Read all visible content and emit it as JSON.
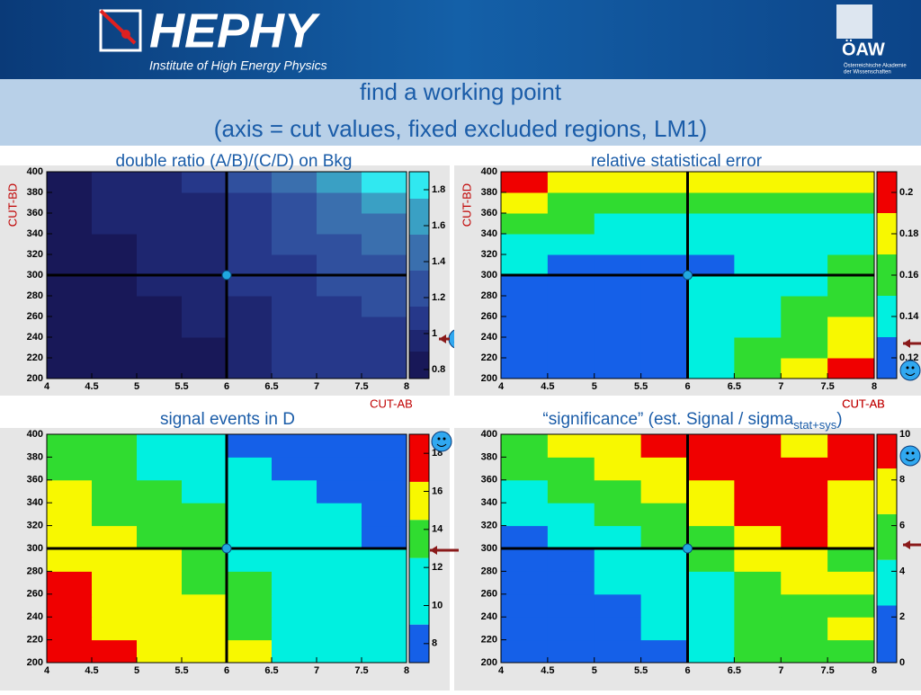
{
  "header": {
    "logo": "HEPHY",
    "institute": "Institute of High Energy Physics",
    "academy": "ÖAW",
    "academy_line1": "Österreichische Akademie",
    "academy_line2": "der Wissenschaften"
  },
  "slide_title": [
    "find a working point",
    "(axis = cut values, fixed excluded regions, LM1)"
  ],
  "chart_data": [
    {
      "type": "heatmap",
      "title": "double ratio (A/B)/(C/D) on Bkg",
      "xlabel": "CUT-AB",
      "ylabel": "CUT-BD",
      "xbins": [
        4,
        4.5,
        5,
        5.5,
        6,
        6.5,
        7,
        7.5,
        8
      ],
      "ybins": [
        200,
        220,
        240,
        260,
        280,
        300,
        320,
        340,
        360,
        380,
        400
      ],
      "xlim": [
        4,
        8
      ],
      "ylim": [
        200,
        400
      ],
      "xticks": [
        4,
        4.5,
        5,
        5.5,
        6,
        6.5,
        7,
        7.5,
        8
      ],
      "yticks": [
        200,
        220,
        240,
        260,
        280,
        300,
        320,
        340,
        360,
        380,
        400
      ],
      "zlim": [
        0.75,
        1.9
      ],
      "zticks": [
        0.8,
        1,
        1.2,
        1.4,
        1.6,
        1.8
      ],
      "levels": [
        0.75,
        0.9,
        1.02,
        1.15,
        1.35,
        1.55,
        1.75,
        1.9
      ],
      "colors": [
        "#181858",
        "#1e2670",
        "#26388a",
        "#30509e",
        "#3a6fae",
        "#3aa0c4",
        "#30e8f0"
      ],
      "cut_point": [
        6,
        300
      ],
      "values": [
        [
          0.85,
          0.85,
          0.85,
          0.85,
          1.0,
          1.05,
          1.1,
          1.1
        ],
        [
          0.85,
          0.85,
          0.85,
          0.85,
          1.0,
          1.05,
          1.1,
          1.1
        ],
        [
          0.85,
          0.85,
          0.85,
          0.95,
          1.0,
          1.05,
          1.1,
          1.1
        ],
        [
          0.85,
          0.85,
          0.85,
          0.95,
          1.0,
          1.05,
          1.1,
          1.2
        ],
        [
          0.85,
          0.85,
          0.9,
          1.0,
          1.05,
          1.1,
          1.2,
          1.2
        ],
        [
          0.85,
          0.85,
          0.9,
          1.0,
          1.05,
          1.1,
          1.2,
          1.3
        ],
        [
          0.85,
          0.85,
          0.9,
          1.0,
          1.05,
          1.2,
          1.3,
          1.4
        ],
        [
          0.85,
          0.9,
          0.95,
          1.0,
          1.05,
          1.2,
          1.4,
          1.5
        ],
        [
          0.85,
          0.9,
          0.95,
          1.0,
          1.1,
          1.3,
          1.5,
          1.6
        ],
        [
          0.85,
          0.9,
          0.95,
          1.05,
          1.2,
          1.5,
          1.6,
          1.8
        ]
      ]
    },
    {
      "type": "heatmap",
      "title": "relative statistical error",
      "xlabel": "CUT-AB",
      "ylabel": "CUT-BD",
      "xbins": [
        4,
        4.5,
        5,
        5.5,
        6,
        6.5,
        7,
        7.5,
        8
      ],
      "ybins": [
        200,
        220,
        240,
        260,
        280,
        300,
        320,
        340,
        360,
        380,
        400
      ],
      "xlim": [
        4,
        8
      ],
      "ylim": [
        200,
        400
      ],
      "xticks": [
        4,
        4.5,
        5,
        5.5,
        6,
        6.5,
        7,
        7.5,
        8
      ],
      "yticks": [
        200,
        220,
        240,
        260,
        280,
        300,
        320,
        340,
        360,
        380,
        400
      ],
      "zlim": [
        0.11,
        0.21
      ],
      "zticks": [
        0.12,
        0.14,
        0.16,
        0.18,
        0.2
      ],
      "levels": [
        0.11,
        0.13,
        0.15,
        0.17,
        0.19,
        0.21
      ],
      "colors": [
        "#1560e8",
        "#00f0e0",
        "#30dc30",
        "#f8f800",
        "#f00000"
      ],
      "cut_point": [
        6,
        300
      ],
      "values": [
        [
          0.12,
          0.12,
          0.12,
          0.12,
          0.14,
          0.16,
          0.18,
          0.2
        ],
        [
          0.12,
          0.12,
          0.12,
          0.12,
          0.14,
          0.16,
          0.16,
          0.18
        ],
        [
          0.12,
          0.12,
          0.12,
          0.12,
          0.14,
          0.14,
          0.16,
          0.18
        ],
        [
          0.12,
          0.12,
          0.12,
          0.12,
          0.14,
          0.14,
          0.16,
          0.16
        ],
        [
          0.12,
          0.12,
          0.12,
          0.12,
          0.14,
          0.14,
          0.14,
          0.16
        ],
        [
          0.14,
          0.12,
          0.12,
          0.12,
          0.12,
          0.14,
          0.14,
          0.16
        ],
        [
          0.14,
          0.14,
          0.14,
          0.14,
          0.14,
          0.14,
          0.14,
          0.14
        ],
        [
          0.16,
          0.16,
          0.14,
          0.14,
          0.14,
          0.14,
          0.14,
          0.14
        ],
        [
          0.18,
          0.16,
          0.16,
          0.16,
          0.16,
          0.16,
          0.16,
          0.16
        ],
        [
          0.2,
          0.18,
          0.18,
          0.18,
          0.18,
          0.18,
          0.18,
          0.18
        ]
      ]
    },
    {
      "type": "heatmap",
      "title": "signal events in D",
      "xbins": [
        4,
        4.5,
        5,
        5.5,
        6,
        6.5,
        7,
        7.5,
        8
      ],
      "ybins": [
        200,
        220,
        240,
        260,
        280,
        300,
        320,
        340,
        360,
        380,
        400
      ],
      "xlim": [
        4,
        8
      ],
      "ylim": [
        200,
        400
      ],
      "xticks": [
        4,
        4.5,
        5,
        5.5,
        6,
        6.5,
        7,
        7.5,
        8
      ],
      "yticks": [
        200,
        220,
        240,
        260,
        280,
        300,
        320,
        340,
        360,
        380,
        400
      ],
      "zlim": [
        7,
        19
      ],
      "zticks": [
        8,
        10,
        12,
        14,
        16,
        18
      ],
      "levels": [
        7,
        9,
        12.5,
        14.5,
        16.5,
        19
      ],
      "colors": [
        "#1560e8",
        "#00f0e0",
        "#30dc30",
        "#f8f800",
        "#f00000"
      ],
      "cut_point": [
        6,
        300
      ],
      "values": [
        [
          18,
          18,
          16,
          16,
          15,
          11,
          11,
          11
        ],
        [
          18,
          16,
          16,
          16,
          14,
          11,
          11,
          11
        ],
        [
          18,
          16,
          16,
          16,
          14,
          11,
          11,
          11
        ],
        [
          18,
          16,
          16,
          14,
          14,
          11,
          11,
          11
        ],
        [
          16,
          16,
          16,
          14,
          11,
          11,
          11,
          11
        ],
        [
          16,
          16,
          14,
          14,
          11,
          11,
          11,
          8
        ],
        [
          16,
          14,
          14,
          14,
          11,
          11,
          11,
          8
        ],
        [
          16,
          14,
          14,
          11,
          11,
          11,
          8,
          8
        ],
        [
          14,
          14,
          11,
          11,
          11,
          8,
          8,
          8
        ],
        [
          14,
          14,
          11,
          11,
          8,
          8,
          8,
          8
        ]
      ]
    },
    {
      "type": "heatmap",
      "title": "“significance” (est. Signal / sigma",
      "title_sub": "stat+sys",
      "title_end": ")",
      "xlabel": "CUT-AB",
      "xbins": [
        4,
        4.5,
        5,
        5.5,
        6,
        6.5,
        7,
        7.5,
        8
      ],
      "ybins": [
        200,
        220,
        240,
        260,
        280,
        300,
        320,
        340,
        360,
        380,
        400
      ],
      "xlim": [
        4,
        8
      ],
      "ylim": [
        200,
        400
      ],
      "xticks": [
        4,
        4.5,
        5,
        5.5,
        6,
        6.5,
        7,
        7.5,
        8
      ],
      "yticks": [
        200,
        220,
        240,
        260,
        280,
        300,
        320,
        340,
        360,
        380,
        400
      ],
      "zlim": [
        0,
        10
      ],
      "zticks": [
        0,
        2,
        4,
        6,
        8,
        10
      ],
      "levels": [
        0,
        2.5,
        4.5,
        6.5,
        8.5,
        10
      ],
      "colors": [
        "#1560e8",
        "#00f0e0",
        "#30dc30",
        "#f8f800",
        "#f00000"
      ],
      "cut_point": [
        6,
        300
      ],
      "values": [
        [
          1,
          1,
          1,
          2,
          3,
          5,
          5,
          5
        ],
        [
          1,
          1,
          2,
          3,
          3,
          5,
          5,
          7
        ],
        [
          1,
          1,
          2,
          3,
          3,
          5,
          5,
          5
        ],
        [
          1,
          2,
          3,
          3,
          3,
          5,
          7,
          7
        ],
        [
          1,
          2,
          3,
          3,
          5,
          7,
          7,
          5
        ],
        [
          2,
          3,
          3,
          5,
          5,
          7,
          9,
          7
        ],
        [
          3,
          3,
          5,
          5,
          7,
          9,
          9,
          7
        ],
        [
          3,
          5,
          5,
          7,
          7,
          9,
          9,
          7
        ],
        [
          5,
          5,
          7,
          7,
          9,
          9,
          9,
          9
        ],
        [
          5,
          7,
          7,
          9,
          9,
          9,
          7,
          9
        ]
      ]
    }
  ]
}
